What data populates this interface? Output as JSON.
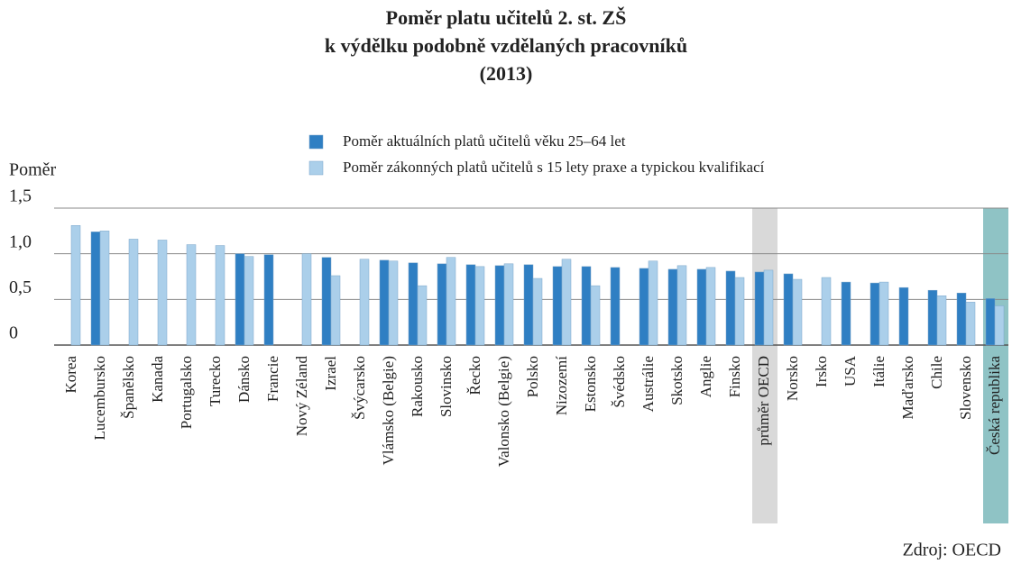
{
  "chart_data": {
    "type": "bar",
    "title": [
      "Poměr platu učitelů 2. st. ZŠ",
      "k výdělku podobně vzdělaných pracovníků",
      "(2013)"
    ],
    "ylabel": "Poměr",
    "source": "Zdroj: OECD",
    "categories": [
      "Korea",
      "Lucembursko",
      "Španělsko",
      "Kanada",
      "Portugalsko",
      "Turecko",
      "Dánsko",
      "Francie",
      "Nový Zéland",
      "Izrael",
      "Švýcarsko",
      "Vlámsko (Belgie)",
      "Rakousko",
      "Slovinsko",
      "Řecko",
      "Valonsko (Belgie)",
      "Polsko",
      "Nizozemí",
      "Estonsko",
      "Švédsko",
      "Austrálie",
      "Skotsko",
      "Anglie",
      "Finsko",
      "průměr OECD",
      "Norsko",
      "Irsko",
      "USA",
      "Itálie",
      "Maďarsko",
      "Chile",
      "Slovensko",
      "Česká republika"
    ],
    "series": [
      {
        "name": "Poměr aktuálních platů učitelů věku 25–64 let",
        "color": "#2f7fc3",
        "values": [
          null,
          1.24,
          null,
          null,
          null,
          null,
          1.0,
          0.99,
          null,
          0.96,
          null,
          0.93,
          0.9,
          0.89,
          0.88,
          0.87,
          0.88,
          0.86,
          0.86,
          0.85,
          0.84,
          0.83,
          0.83,
          0.81,
          0.8,
          0.78,
          null,
          0.69,
          0.68,
          0.63,
          0.6,
          0.57,
          0.51
        ]
      },
      {
        "name": "Poměr zákonných platů učitelů s 15 lety praxe a typickou kvalifikací",
        "color": "#abcfea",
        "values": [
          1.31,
          1.25,
          1.16,
          1.15,
          1.1,
          1.09,
          0.97,
          null,
          1.0,
          0.76,
          0.94,
          0.92,
          0.65,
          0.96,
          0.86,
          0.89,
          0.73,
          0.94,
          0.65,
          null,
          0.92,
          0.87,
          0.85,
          0.74,
          0.82,
          0.72,
          0.74,
          null,
          0.69,
          null,
          0.54,
          0.47,
          0.43
        ]
      }
    ],
    "highlight": {
      "průměr OECD": "#d9d9d9",
      "Česká republika": "#8fc3c5"
    },
    "ylim": [
      0,
      1.5
    ],
    "yticks": [
      0,
      {
        "value": 0.5,
        "label": "0,5"
      },
      {
        "value": 1.0,
        "label": "1,0"
      },
      {
        "value": 1.5,
        "label": "1,5"
      }
    ],
    "grid": true
  }
}
